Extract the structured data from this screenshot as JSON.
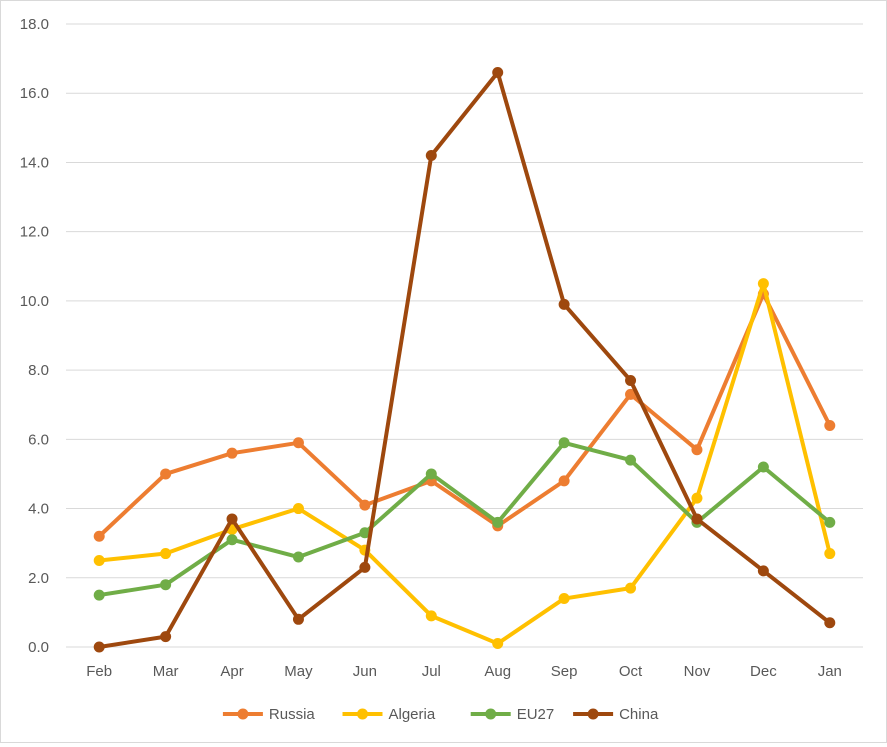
{
  "chart_data": {
    "type": "line",
    "title": "",
    "xlabel": "",
    "ylabel": "",
    "ylim": [
      0,
      18
    ],
    "ytick_step": 2,
    "ytick_labels": [
      "0.0",
      "2.0",
      "4.0",
      "6.0",
      "8.0",
      "10.0",
      "12.0",
      "14.0",
      "16.0",
      "18.0"
    ],
    "grid": true,
    "legend_position": "bottom",
    "categories": [
      "Feb",
      "Mar",
      "Apr",
      "May",
      "Jun",
      "Jul",
      "Aug",
      "Sep",
      "Oct",
      "Nov",
      "Dec",
      "Jan"
    ],
    "series": [
      {
        "name": "Russia",
        "color": "#ed7d31",
        "values": [
          3.2,
          5.0,
          5.6,
          5.9,
          4.1,
          4.8,
          3.5,
          4.8,
          7.3,
          5.7,
          10.2,
          6.4
        ]
      },
      {
        "name": "Algeria",
        "color": "#ffc000",
        "values": [
          2.5,
          2.7,
          3.4,
          4.0,
          2.8,
          0.9,
          0.1,
          1.4,
          1.7,
          4.3,
          10.5,
          2.7
        ]
      },
      {
        "name": "EU27",
        "color": "#70ad47",
        "values": [
          1.5,
          1.8,
          3.1,
          2.6,
          3.3,
          5.0,
          3.6,
          5.9,
          5.4,
          3.6,
          5.2,
          3.6
        ]
      },
      {
        "name": "China",
        "color": "#9e480e",
        "values": [
          0.0,
          0.3,
          3.7,
          0.8,
          2.3,
          14.2,
          16.6,
          9.9,
          7.7,
          3.7,
          2.2,
          0.7
        ]
      }
    ]
  }
}
